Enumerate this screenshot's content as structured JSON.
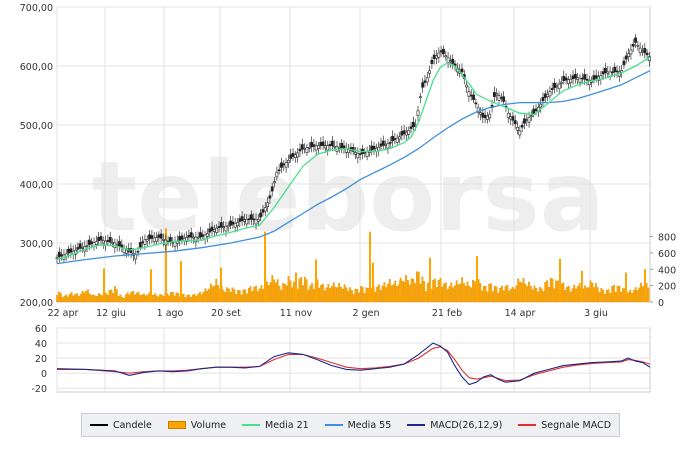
{
  "chart_data": {
    "type": "line",
    "watermark": "teleborsa",
    "x_ticks": [
      "22 apr",
      "12 giu",
      "1 ago",
      "20 set",
      "11 nov",
      "2 gen",
      "21 feb",
      "14 apr",
      "3 giu"
    ],
    "price_axis": {
      "ticks": [
        "200,00",
        "300,00",
        "400,00",
        "500,00",
        "600,00",
        "700,00"
      ],
      "ylim": [
        200,
        700
      ]
    },
    "volume_axis": {
      "ticks": [
        "0",
        "200",
        "400",
        "600",
        "800"
      ],
      "ylim": [
        0,
        1100
      ]
    },
    "macd_axis": {
      "ticks": [
        "-20",
        "0",
        "20",
        "40",
        "60"
      ],
      "ylim": [
        -25,
        60
      ]
    },
    "legend": [
      {
        "label": "Candele",
        "color": "#000000",
        "kind": "line"
      },
      {
        "label": "Volume",
        "color": "#ffa500",
        "kind": "box"
      },
      {
        "label": "Media 21",
        "color": "#48e08c",
        "kind": "line"
      },
      {
        "label": "Media 55",
        "color": "#3f8fdc",
        "kind": "line"
      },
      {
        "label": "MACD(26,12,9)",
        "color": "#1b2a8a",
        "kind": "line"
      },
      {
        "label": "Segnale MACD",
        "color": "#e03030",
        "kind": "line"
      }
    ],
    "price_close": [
      [
        0,
        275
      ],
      [
        10,
        285
      ],
      [
        20,
        295
      ],
      [
        30,
        305
      ],
      [
        40,
        300
      ],
      [
        50,
        285
      ],
      [
        55,
        280
      ],
      [
        60,
        305
      ],
      [
        70,
        310
      ],
      [
        80,
        300
      ],
      [
        90,
        310
      ],
      [
        100,
        310
      ],
      [
        110,
        325
      ],
      [
        120,
        330
      ],
      [
        130,
        340
      ],
      [
        140,
        340
      ],
      [
        148,
        380
      ],
      [
        152,
        420
      ],
      [
        160,
        440
      ],
      [
        170,
        460
      ],
      [
        180,
        465
      ],
      [
        190,
        465
      ],
      [
        200,
        460
      ],
      [
        210,
        450
      ],
      [
        220,
        460
      ],
      [
        230,
        470
      ],
      [
        240,
        485
      ],
      [
        248,
        500
      ],
      [
        252,
        560
      ],
      [
        256,
        580
      ],
      [
        260,
        610
      ],
      [
        265,
        625
      ],
      [
        270,
        615
      ],
      [
        275,
        600
      ],
      [
        280,
        590
      ],
      [
        285,
        555
      ],
      [
        290,
        535
      ],
      [
        295,
        510
      ],
      [
        300,
        520
      ],
      [
        303,
        555
      ],
      [
        308,
        545
      ],
      [
        312,
        520
      ],
      [
        316,
        505
      ],
      [
        320,
        490
      ],
      [
        325,
        510
      ],
      [
        330,
        520
      ],
      [
        340,
        555
      ],
      [
        350,
        575
      ],
      [
        360,
        580
      ],
      [
        370,
        575
      ],
      [
        380,
        590
      ],
      [
        390,
        590
      ],
      [
        395,
        620
      ],
      [
        400,
        640
      ],
      [
        405,
        625
      ],
      [
        410,
        615
      ]
    ],
    "media21": [
      [
        0,
        272
      ],
      [
        10,
        280
      ],
      [
        20,
        290
      ],
      [
        30,
        297
      ],
      [
        40,
        295
      ],
      [
        50,
        288
      ],
      [
        60,
        292
      ],
      [
        70,
        298
      ],
      [
        80,
        302
      ],
      [
        90,
        304
      ],
      [
        100,
        305
      ],
      [
        110,
        312
      ],
      [
        120,
        318
      ],
      [
        130,
        325
      ],
      [
        140,
        330
      ],
      [
        150,
        360
      ],
      [
        160,
        395
      ],
      [
        170,
        430
      ],
      [
        180,
        450
      ],
      [
        190,
        458
      ],
      [
        200,
        460
      ],
      [
        210,
        455
      ],
      [
        220,
        455
      ],
      [
        230,
        460
      ],
      [
        240,
        470
      ],
      [
        245,
        480
      ],
      [
        250,
        505
      ],
      [
        255,
        540
      ],
      [
        260,
        575
      ],
      [
        265,
        598
      ],
      [
        270,
        605
      ],
      [
        275,
        600
      ],
      [
        280,
        585
      ],
      [
        285,
        570
      ],
      [
        290,
        552
      ],
      [
        300,
        540
      ],
      [
        310,
        530
      ],
      [
        320,
        520
      ],
      [
        330,
        518
      ],
      [
        340,
        538
      ],
      [
        350,
        558
      ],
      [
        360,
        568
      ],
      [
        370,
        575
      ],
      [
        380,
        580
      ],
      [
        390,
        588
      ],
      [
        400,
        600
      ],
      [
        410,
        615
      ]
    ],
    "media55": [
      [
        0,
        265
      ],
      [
        20,
        272
      ],
      [
        40,
        278
      ],
      [
        60,
        282
      ],
      [
        80,
        286
      ],
      [
        100,
        292
      ],
      [
        120,
        300
      ],
      [
        140,
        310
      ],
      [
        150,
        320
      ],
      [
        160,
        335
      ],
      [
        170,
        350
      ],
      [
        180,
        365
      ],
      [
        190,
        378
      ],
      [
        200,
        392
      ],
      [
        210,
        408
      ],
      [
        220,
        420
      ],
      [
        230,
        432
      ],
      [
        240,
        445
      ],
      [
        250,
        460
      ],
      [
        260,
        478
      ],
      [
        270,
        495
      ],
      [
        280,
        510
      ],
      [
        290,
        522
      ],
      [
        300,
        530
      ],
      [
        310,
        535
      ],
      [
        320,
        538
      ],
      [
        330,
        538
      ],
      [
        340,
        538
      ],
      [
        350,
        540
      ],
      [
        360,
        545
      ],
      [
        370,
        552
      ],
      [
        380,
        560
      ],
      [
        390,
        568
      ],
      [
        400,
        580
      ],
      [
        410,
        592
      ]
    ],
    "volume": [
      [
        0,
        150
      ],
      [
        5,
        80
      ],
      [
        10,
        120
      ],
      [
        15,
        100
      ],
      [
        20,
        170
      ],
      [
        25,
        90
      ],
      [
        30,
        110
      ],
      [
        35,
        130
      ],
      [
        40,
        200
      ],
      [
        45,
        60
      ],
      [
        50,
        140
      ],
      [
        55,
        130
      ],
      [
        60,
        100
      ],
      [
        65,
        120
      ],
      [
        70,
        90
      ],
      [
        75,
        110
      ],
      [
        80,
        130
      ],
      [
        85,
        110
      ],
      [
        90,
        90
      ],
      [
        95,
        100
      ],
      [
        100,
        130
      ],
      [
        105,
        200
      ],
      [
        110,
        280
      ],
      [
        115,
        170
      ],
      [
        120,
        190
      ],
      [
        125,
        150
      ],
      [
        130,
        160
      ],
      [
        135,
        210
      ],
      [
        140,
        190
      ],
      [
        145,
        250
      ],
      [
        150,
        350
      ],
      [
        155,
        200
      ],
      [
        160,
        320
      ],
      [
        165,
        230
      ],
      [
        170,
        360
      ],
      [
        175,
        220
      ],
      [
        180,
        280
      ],
      [
        185,
        200
      ],
      [
        190,
        240
      ],
      [
        195,
        230
      ],
      [
        200,
        210
      ],
      [
        205,
        150
      ],
      [
        210,
        200
      ],
      [
        215,
        180
      ],
      [
        220,
        200
      ],
      [
        225,
        230
      ],
      [
        230,
        280
      ],
      [
        235,
        250
      ],
      [
        240,
        340
      ],
      [
        245,
        290
      ],
      [
        250,
        410
      ],
      [
        255,
        230
      ],
      [
        260,
        290
      ],
      [
        265,
        300
      ],
      [
        270,
        220
      ],
      [
        275,
        250
      ],
      [
        280,
        300
      ],
      [
        285,
        230
      ],
      [
        290,
        310
      ],
      [
        295,
        200
      ],
      [
        300,
        240
      ],
      [
        305,
        180
      ],
      [
        310,
        220
      ],
      [
        315,
        180
      ],
      [
        320,
        320
      ],
      [
        325,
        260
      ],
      [
        330,
        200
      ],
      [
        335,
        180
      ],
      [
        340,
        320
      ],
      [
        345,
        280
      ],
      [
        350,
        240
      ],
      [
        355,
        180
      ],
      [
        360,
        240
      ],
      [
        365,
        200
      ],
      [
        370,
        280
      ],
      [
        375,
        180
      ],
      [
        380,
        150
      ],
      [
        385,
        220
      ],
      [
        390,
        200
      ],
      [
        395,
        140
      ],
      [
        400,
        180
      ],
      [
        405,
        250
      ],
      [
        410,
        210
      ]
    ],
    "volume_spikes": [
      [
        104,
        410
      ],
      [
        151,
        400
      ],
      [
        166,
        900
      ],
      [
        181,
        500
      ],
      [
        221,
        420
      ],
      [
        265,
        860
      ],
      [
        296,
        360
      ],
      [
        316,
        520
      ],
      [
        370,
        860
      ],
      [
        373,
        480
      ],
      [
        400,
        260
      ],
      [
        430,
        540
      ],
      [
        477,
        560
      ],
      [
        560,
        530
      ],
      [
        582,
        380
      ],
      [
        626,
        360
      ],
      [
        645,
        400
      ]
    ],
    "macd": [
      [
        0,
        6
      ],
      [
        20,
        5
      ],
      [
        40,
        3
      ],
      [
        50,
        -3
      ],
      [
        60,
        1
      ],
      [
        70,
        3
      ],
      [
        80,
        2
      ],
      [
        90,
        3
      ],
      [
        100,
        6
      ],
      [
        110,
        8
      ],
      [
        120,
        8
      ],
      [
        130,
        7
      ],
      [
        140,
        9
      ],
      [
        150,
        22
      ],
      [
        160,
        27
      ],
      [
        170,
        25
      ],
      [
        180,
        18
      ],
      [
        190,
        10
      ],
      [
        200,
        5
      ],
      [
        210,
        4
      ],
      [
        220,
        6
      ],
      [
        230,
        8
      ],
      [
        240,
        12
      ],
      [
        250,
        25
      ],
      [
        260,
        40
      ],
      [
        265,
        36
      ],
      [
        270,
        28
      ],
      [
        275,
        10
      ],
      [
        280,
        -5
      ],
      [
        285,
        -15
      ],
      [
        290,
        -12
      ],
      [
        295,
        -5
      ],
      [
        300,
        -2
      ],
      [
        305,
        -8
      ],
      [
        310,
        -12
      ],
      [
        320,
        -10
      ],
      [
        330,
        0
      ],
      [
        340,
        5
      ],
      [
        350,
        10
      ],
      [
        360,
        12
      ],
      [
        370,
        14
      ],
      [
        380,
        15
      ],
      [
        390,
        16
      ],
      [
        395,
        20
      ],
      [
        400,
        16
      ],
      [
        405,
        14
      ],
      [
        410,
        8
      ]
    ],
    "signal": [
      [
        0,
        5
      ],
      [
        20,
        5
      ],
      [
        40,
        2
      ],
      [
        50,
        0
      ],
      [
        60,
        2
      ],
      [
        70,
        3
      ],
      [
        80,
        3
      ],
      [
        90,
        4
      ],
      [
        100,
        6
      ],
      [
        110,
        8
      ],
      [
        120,
        8
      ],
      [
        130,
        8
      ],
      [
        140,
        9
      ],
      [
        150,
        18
      ],
      [
        160,
        25
      ],
      [
        170,
        25
      ],
      [
        180,
        20
      ],
      [
        190,
        14
      ],
      [
        200,
        8
      ],
      [
        210,
        6
      ],
      [
        220,
        7
      ],
      [
        230,
        9
      ],
      [
        240,
        12
      ],
      [
        250,
        20
      ],
      [
        260,
        33
      ],
      [
        265,
        35
      ],
      [
        270,
        30
      ],
      [
        275,
        18
      ],
      [
        280,
        4
      ],
      [
        285,
        -6
      ],
      [
        290,
        -8
      ],
      [
        295,
        -6
      ],
      [
        300,
        -4
      ],
      [
        305,
        -7
      ],
      [
        310,
        -10
      ],
      [
        320,
        -9
      ],
      [
        330,
        -2
      ],
      [
        340,
        3
      ],
      [
        350,
        8
      ],
      [
        360,
        11
      ],
      [
        370,
        13
      ],
      [
        380,
        14
      ],
      [
        390,
        15
      ],
      [
        395,
        18
      ],
      [
        400,
        17
      ],
      [
        405,
        15
      ],
      [
        410,
        12
      ]
    ]
  }
}
